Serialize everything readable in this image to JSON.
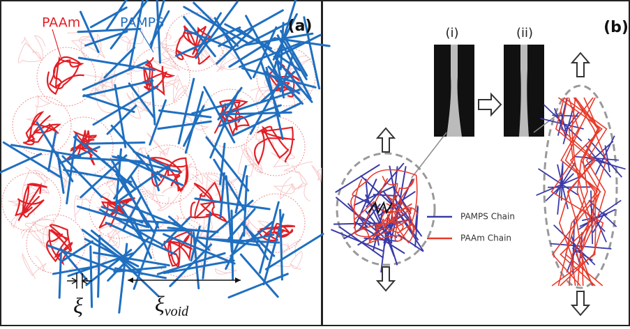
{
  "panels": [
    {
      "label": "(a)",
      "network_labels": [
        "PAAm",
        "PAMPS"
      ],
      "length_scales": {
        "mesh": "ξ",
        "void_symbol": "ξ",
        "void_subscript": "void"
      }
    },
    {
      "label": "(b)",
      "photos": [
        "(i)",
        "(ii)"
      ],
      "legend": [
        "PAMPS Chain",
        "PAAm Chain"
      ]
    }
  ]
}
